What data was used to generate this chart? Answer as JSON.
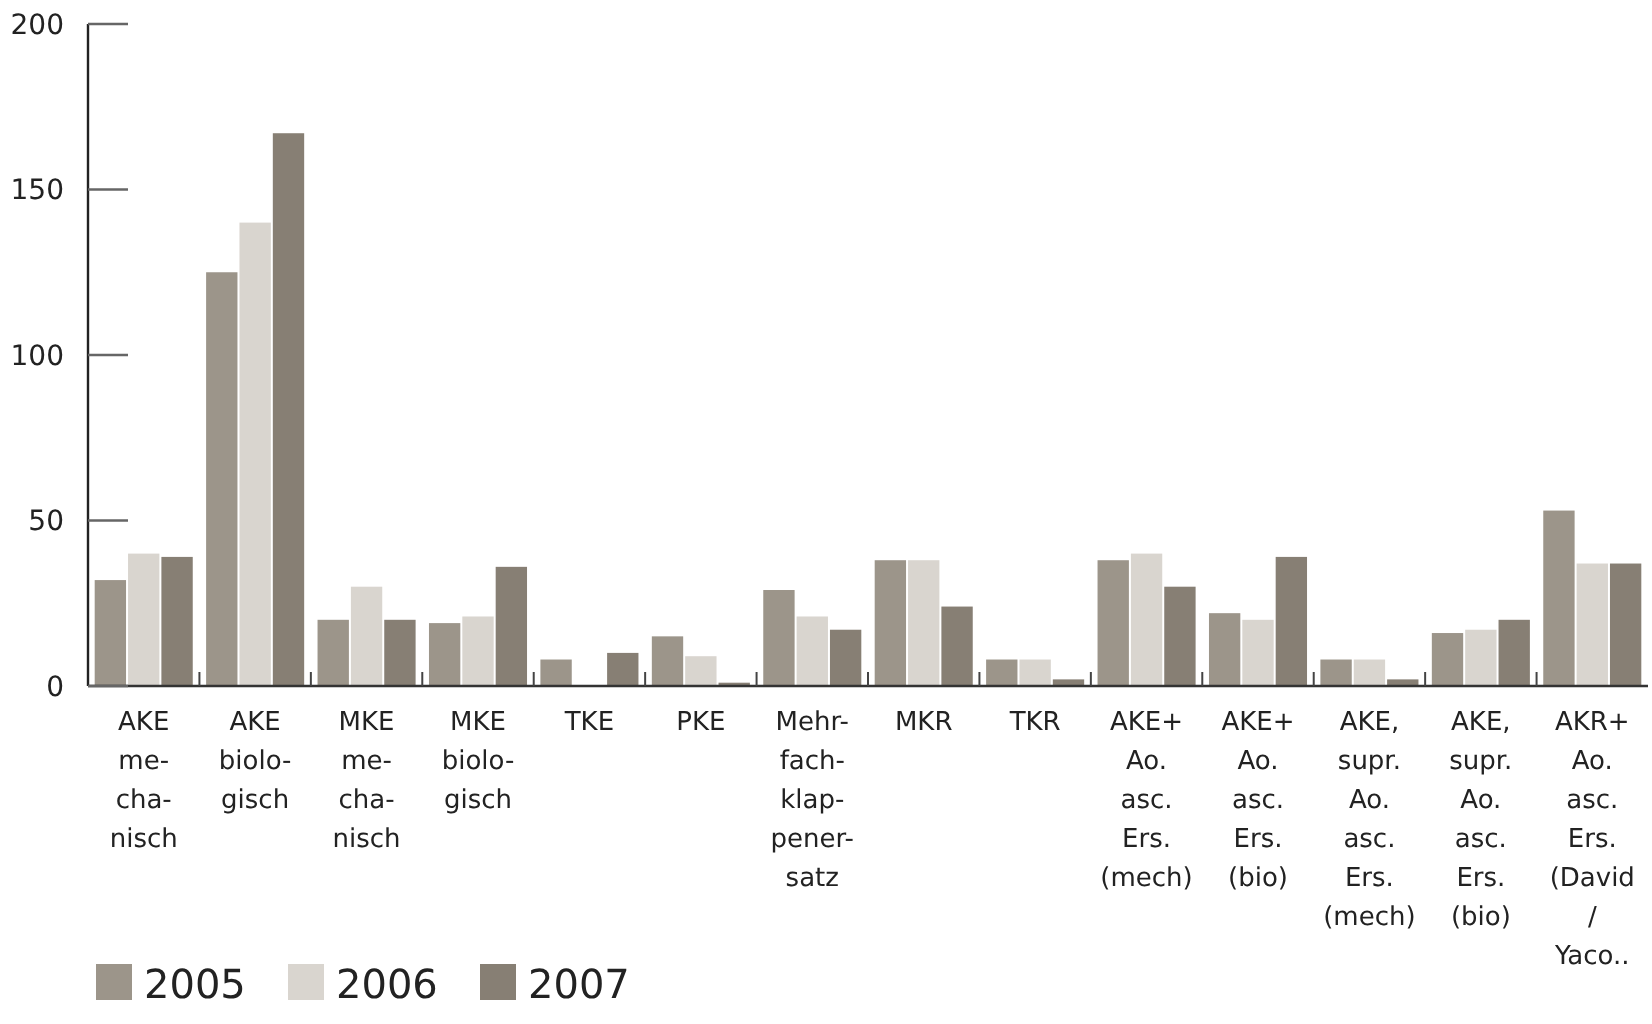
{
  "chart_data": {
    "type": "bar",
    "categories": [
      "AKE\nme-\ncha-\nnisch",
      "AKE\nbiolo-\ngisch",
      "MKE\nme-\ncha-\nnisch",
      "MKE\nbiolo-\ngisch",
      "TKE",
      "PKE",
      "Mehr-\nfach-\nklap-\npener-\nsatz",
      "MKR",
      "TKR",
      "AKE+\nAo.\nasc.\nErs.\n(mech)",
      "AKE+\nAo.\nasc.\nErs.\n(bio)",
      "AKE,\nsupr.\nAo.\nasc.\nErs.\n(mech)",
      "AKE,\nsupr.\nAo.\nasc.\nErs.\n(bio)",
      "AKR+\nAo.\nasc.\nErs.\n(David\n/\nYaco.."
    ],
    "series": [
      {
        "name": "2005",
        "color": "#9c958a",
        "values": [
          32,
          125,
          20,
          19,
          8,
          15,
          29,
          38,
          8,
          38,
          22,
          8,
          16,
          53
        ]
      },
      {
        "name": "2006",
        "color": "#d9d5cf",
        "values": [
          40,
          140,
          30,
          21,
          0,
          9,
          21,
          38,
          8,
          40,
          20,
          8,
          17,
          37
        ]
      },
      {
        "name": "2007",
        "color": "#877f74",
        "values": [
          39,
          167,
          20,
          36,
          10,
          1,
          17,
          24,
          2,
          30,
          39,
          2,
          20,
          37
        ]
      }
    ],
    "ylim": [
      0,
      200
    ],
    "yticks": [
      0,
      50,
      100,
      150,
      200
    ],
    "legend": "bottom",
    "grid": false
  }
}
